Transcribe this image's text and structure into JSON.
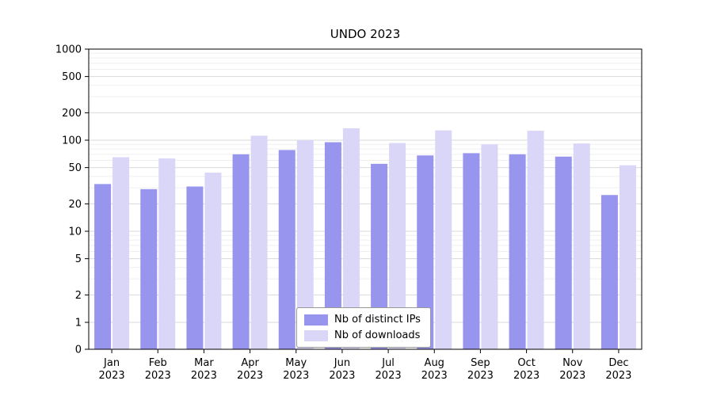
{
  "chart_data": {
    "type": "bar",
    "title": "UNDO 2023",
    "scale": "symlog",
    "grid": "on",
    "legend_position": "lower center",
    "ylim": [
      0,
      1000
    ],
    "yticks": [
      1000,
      500,
      200,
      100,
      50,
      20,
      10,
      5,
      2,
      1,
      0
    ],
    "categories": [
      {
        "month": "Jan",
        "year": "2023"
      },
      {
        "month": "Feb",
        "year": "2023"
      },
      {
        "month": "Mar",
        "year": "2023"
      },
      {
        "month": "Apr",
        "year": "2023"
      },
      {
        "month": "May",
        "year": "2023"
      },
      {
        "month": "Jun",
        "year": "2023"
      },
      {
        "month": "Jul",
        "year": "2023"
      },
      {
        "month": "Aug",
        "year": "2023"
      },
      {
        "month": "Sep",
        "year": "2023"
      },
      {
        "month": "Oct",
        "year": "2023"
      },
      {
        "month": "Nov",
        "year": "2023"
      },
      {
        "month": "Dec",
        "year": "2023"
      }
    ],
    "series": [
      {
        "name": "Nb of distinct IPs",
        "color": "#9795ee",
        "values": [
          33,
          29,
          31,
          70,
          78,
          95,
          55,
          68,
          72,
          70,
          66,
          25
        ]
      },
      {
        "name": "Nb of downloads",
        "color": "#d9d6f8",
        "values": [
          65,
          63,
          44,
          112,
          100,
          135,
          93,
          128,
          90,
          127,
          92,
          53
        ]
      }
    ],
    "colors": {
      "major_gridline": "#d9d9d9",
      "minor_gridline": "#efefef",
      "axis_frame": "#000000"
    }
  }
}
